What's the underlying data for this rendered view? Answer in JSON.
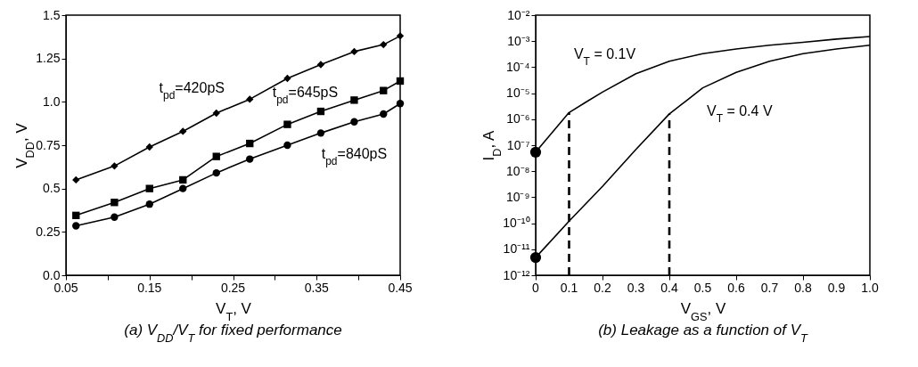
{
  "chart_data": [
    {
      "type": "line",
      "title": "(a) V$_{DD}$/V$_{T}$ for fixed performance",
      "xlabel": "V$_{T}$, V",
      "ylabel": "V$_{DD}$, V",
      "x": [
        0.062,
        0.108,
        0.15,
        0.19,
        0.23,
        0.27,
        0.315,
        0.355,
        0.395,
        0.43,
        0.45
      ],
      "series": [
        {
          "name": "t$_{pd}$=420pS",
          "color": "#000000",
          "marker": "diamond",
          "values": [
            0.55,
            0.63,
            0.74,
            0.83,
            0.935,
            1.015,
            1.135,
            1.215,
            1.29,
            1.33,
            1.38
          ]
        },
        {
          "name": "t$_{pd}$=645pS",
          "color": "#000000",
          "marker": "square",
          "values": [
            0.345,
            0.42,
            0.5,
            0.55,
            0.685,
            0.76,
            0.87,
            0.945,
            1.01,
            1.065,
            1.12
          ]
        },
        {
          "name": "t$_{pd}$=840pS",
          "color": "#000000",
          "marker": "circle",
          "values": [
            0.285,
            0.335,
            0.41,
            0.5,
            0.59,
            0.67,
            0.75,
            0.82,
            0.885,
            0.93,
            0.99
          ]
        }
      ],
      "xlim": [
        0.05,
        0.45
      ],
      "xticks": [
        0.05,
        {
          "value": 0.1,
          "label": null
        },
        0.15,
        {
          "value": 0.2,
          "label": null
        },
        0.25,
        {
          "value": 0.3,
          "label": null
        },
        0.35,
        {
          "value": 0.4,
          "label": null
        },
        0.45
      ],
      "ylim": [
        0,
        1.5
      ],
      "yticks": [
        {
          "value": 0,
          "label": "0.0"
        },
        0.25,
        {
          "value": 0.5,
          "label": "0.5"
        },
        0.75,
        {
          "value": 1,
          "label": "1.0"
        },
        1.25,
        {
          "value": 1.5,
          "label": "1.5"
        }
      ],
      "grid": false,
      "legend": false
    },
    {
      "type": "line",
      "title": "(b) Leakage as a function of V$_{T}$",
      "xlabel": "V$_{GS}$, V",
      "ylabel": "I$_{D}$, A",
      "log": "y",
      "series": [
        {
          "name": "V$_{T}$ = 0.1V",
          "color": "#000000",
          "marker": "none",
          "x": [
            0,
            0.1,
            0.15,
            0.2,
            0.3,
            0.4,
            0.5,
            0.6,
            0.7,
            0.8,
            0.9,
            1.0
          ],
          "values": [
            5.4e-08,
            1.8e-06,
            4.5e-06,
            1.1e-05,
            5.6e-05,
            0.00017,
            0.00033,
            0.0005,
            0.0007,
            0.0009,
            0.0012,
            0.0015
          ]
        },
        {
          "name": "V$_{T}$ = 0.4 V",
          "color": "#000000",
          "marker": "none",
          "x": [
            0,
            0.1,
            0.2,
            0.3,
            0.4,
            0.45,
            0.5,
            0.6,
            0.7,
            0.8,
            0.9,
            1.0
          ],
          "values": [
            4.8e-12,
            1.2e-10,
            2.6e-09,
            6.9e-08,
            1.6e-06,
            5e-06,
            1.6e-05,
            6.3e-05,
            0.00017,
            0.00033,
            0.0005,
            0.0007
          ]
        },
        {
          "type": "scatter",
          "color": "#000000",
          "marker": "circle",
          "x": [
            0,
            0
          ],
          "values": [
            5.4e-08,
            4.8e-12
          ]
        },
        {
          "color": "#000000",
          "marker": "none",
          "line_style": "dashed",
          "x": [
            0.1,
            0.1
          ],
          "values": [
            1e-12,
            1.8e-06
          ]
        },
        {
          "color": "#000000",
          "marker": "none",
          "line_style": "dashed",
          "x": [
            0.4,
            0.4
          ],
          "values": [
            1e-12,
            1.6e-06
          ]
        }
      ],
      "xlim": [
        0,
        1
      ],
      "xticks": [
        0,
        0.1,
        0.2,
        0.3,
        0.4,
        0.5,
        0.6,
        0.7,
        0.8,
        0.9,
        {
          "value": 1,
          "label": "1.0"
        }
      ],
      "ylim": [
        1e-12,
        0.01
      ],
      "yticks": [
        {
          "value": 1e-12,
          "label": "10⁻¹²"
        },
        {
          "value": 1e-11,
          "label": "10⁻¹¹"
        },
        {
          "value": 1e-10,
          "label": "10⁻¹⁰"
        },
        {
          "value": 1e-09,
          "label": "10⁻⁹"
        },
        {
          "value": 1e-08,
          "label": "10⁻⁸"
        },
        {
          "value": 1e-07,
          "label": "10⁻⁷"
        },
        {
          "value": 1e-06,
          "label": "10⁻⁶"
        },
        {
          "value": 1e-05,
          "label": "10⁻⁵"
        },
        {
          "value": 0.0001,
          "label": "10⁻⁴"
        },
        {
          "value": 0.001,
          "label": "10⁻³"
        },
        {
          "value": 0.01,
          "label": "10⁻²"
        }
      ],
      "grid": false,
      "legend": false
    }
  ]
}
